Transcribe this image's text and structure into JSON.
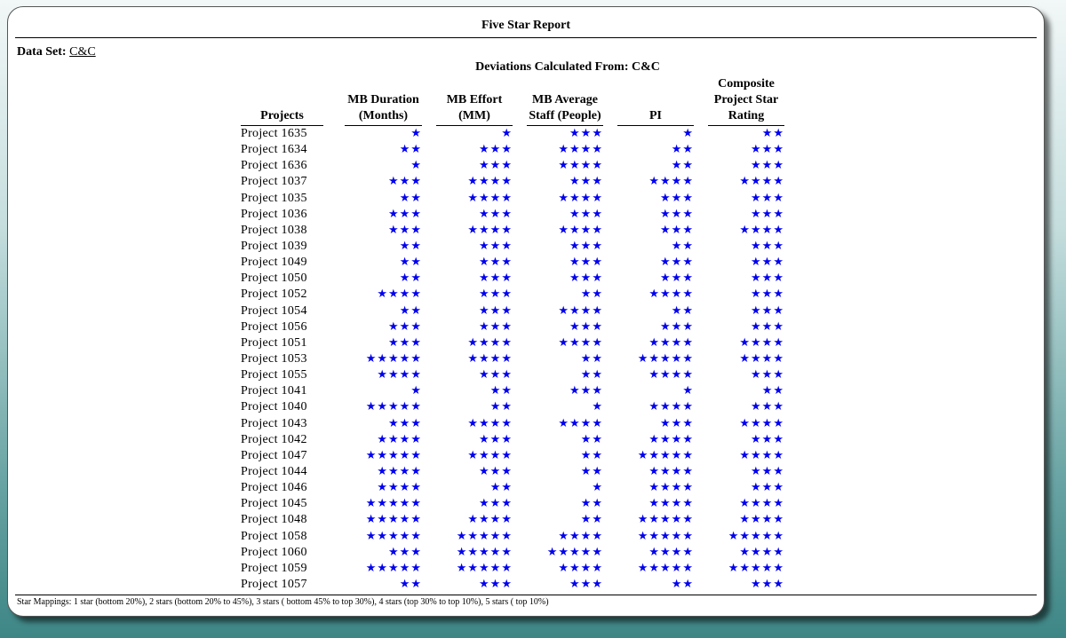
{
  "report": {
    "title": "Five Star Report",
    "dataset_label": "Data Set:",
    "dataset_value": "C&C",
    "deviation_heading": "Deviations Calculated From: C&C",
    "footer": "Star Mappings:  1 star (bottom 20%),  2 stars (bottom 20% to 45%),  3 stars ( bottom 45% to top 30%), 4 stars (top 30% to top 10%),  5 stars ( top 10%)"
  },
  "columns": [
    "Projects",
    "MB Duration (Months)",
    "MB Effort (MM)",
    "MB Average Staff (People)",
    "PI",
    "Composite Project Star Rating"
  ],
  "star_glyph": "★",
  "colors": {
    "star": "#0000ee",
    "text": "#000000"
  },
  "rows": [
    {
      "name": "Project  1635",
      "ratings": [
        1,
        1,
        3,
        1,
        2
      ]
    },
    {
      "name": "Project  1634",
      "ratings": [
        2,
        3,
        4,
        2,
        3
      ]
    },
    {
      "name": "Project  1636",
      "ratings": [
        1,
        3,
        4,
        2,
        3
      ]
    },
    {
      "name": "Project  1037",
      "ratings": [
        3,
        4,
        3,
        4,
        4
      ]
    },
    {
      "name": "Project  1035",
      "ratings": [
        2,
        4,
        4,
        3,
        3
      ]
    },
    {
      "name": "Project  1036",
      "ratings": [
        3,
        3,
        3,
        3,
        3
      ]
    },
    {
      "name": "Project  1038",
      "ratings": [
        3,
        4,
        4,
        3,
        4
      ]
    },
    {
      "name": "Project  1039",
      "ratings": [
        2,
        3,
        3,
        2,
        3
      ]
    },
    {
      "name": "Project  1049",
      "ratings": [
        2,
        3,
        3,
        3,
        3
      ]
    },
    {
      "name": "Project  1050",
      "ratings": [
        2,
        3,
        3,
        3,
        3
      ]
    },
    {
      "name": "Project  1052",
      "ratings": [
        4,
        3,
        2,
        4,
        3
      ]
    },
    {
      "name": "Project  1054",
      "ratings": [
        2,
        3,
        4,
        2,
        3
      ]
    },
    {
      "name": "Project  1056",
      "ratings": [
        3,
        3,
        3,
        3,
        3
      ]
    },
    {
      "name": "Project  1051",
      "ratings": [
        3,
        4,
        4,
        4,
        4
      ]
    },
    {
      "name": "Project  1053",
      "ratings": [
        5,
        4,
        2,
        5,
        4
      ]
    },
    {
      "name": "Project  1055",
      "ratings": [
        4,
        3,
        2,
        4,
        3
      ]
    },
    {
      "name": "Project  1041",
      "ratings": [
        1,
        2,
        3,
        1,
        2
      ]
    },
    {
      "name": "Project  1040",
      "ratings": [
        5,
        2,
        1,
        4,
        3
      ]
    },
    {
      "name": "Project  1043",
      "ratings": [
        3,
        4,
        4,
        3,
        4
      ]
    },
    {
      "name": "Project  1042",
      "ratings": [
        4,
        3,
        2,
        4,
        3
      ]
    },
    {
      "name": "Project  1047",
      "ratings": [
        5,
        4,
        2,
        5,
        4
      ]
    },
    {
      "name": "Project  1044",
      "ratings": [
        4,
        3,
        2,
        4,
        3
      ]
    },
    {
      "name": "Project  1046",
      "ratings": [
        4,
        2,
        1,
        4,
        3
      ]
    },
    {
      "name": "Project  1045",
      "ratings": [
        5,
        3,
        2,
        4,
        4
      ]
    },
    {
      "name": "Project  1048",
      "ratings": [
        5,
        4,
        2,
        5,
        4
      ]
    },
    {
      "name": "Project  1058",
      "ratings": [
        5,
        5,
        4,
        5,
        5
      ]
    },
    {
      "name": "Project  1060",
      "ratings": [
        3,
        5,
        5,
        4,
        4
      ]
    },
    {
      "name": "Project  1059",
      "ratings": [
        5,
        5,
        4,
        5,
        5
      ]
    },
    {
      "name": "Project  1057",
      "ratings": [
        2,
        3,
        3,
        2,
        3
      ]
    }
  ]
}
